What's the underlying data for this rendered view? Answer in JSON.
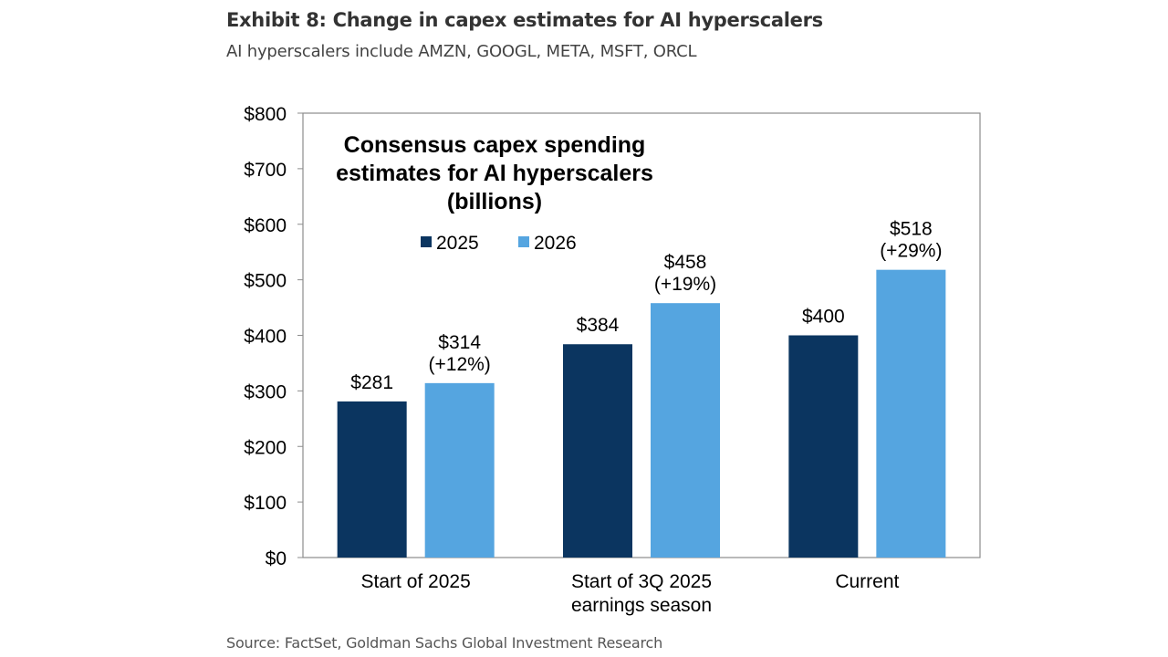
{
  "header": {
    "title": "Exhibit 8: Change in capex estimates for AI hyperscalers",
    "subtitle": "AI hyperscalers include AMZN, GOOGL, META, MSFT, ORCL"
  },
  "footer": {
    "source": "Source: FactSet, Goldman Sachs Global Investment Research"
  },
  "chart_data": {
    "type": "bar",
    "title_lines": [
      "Consensus capex spending",
      "estimates for AI hyperscalers",
      "(billions)"
    ],
    "categories": [
      [
        "Start of 2025"
      ],
      [
        "Start of 3Q 2025",
        "earnings season"
      ],
      [
        "Current"
      ]
    ],
    "series": [
      {
        "name": "2025",
        "color": "#0b3560",
        "values": [
          281,
          384,
          400
        ],
        "labels": [
          [
            "$281"
          ],
          [
            "$384"
          ],
          [
            "$400"
          ]
        ]
      },
      {
        "name": "2026",
        "color": "#55a5e0",
        "values": [
          314,
          458,
          518
        ],
        "labels": [
          [
            "$314",
            "(+12%)"
          ],
          [
            "$458",
            "(+19%)"
          ],
          [
            "$518",
            "(+29%)"
          ]
        ]
      }
    ],
    "ylim": [
      0,
      800
    ],
    "yticks": [
      0,
      100,
      200,
      300,
      400,
      500,
      600,
      700,
      800
    ],
    "ytick_labels": [
      "$0",
      "$100",
      "$200",
      "$300",
      "$400",
      "$500",
      "$600",
      "$700",
      "$800"
    ],
    "legend_position": "top-left inside plot",
    "grid": false
  }
}
